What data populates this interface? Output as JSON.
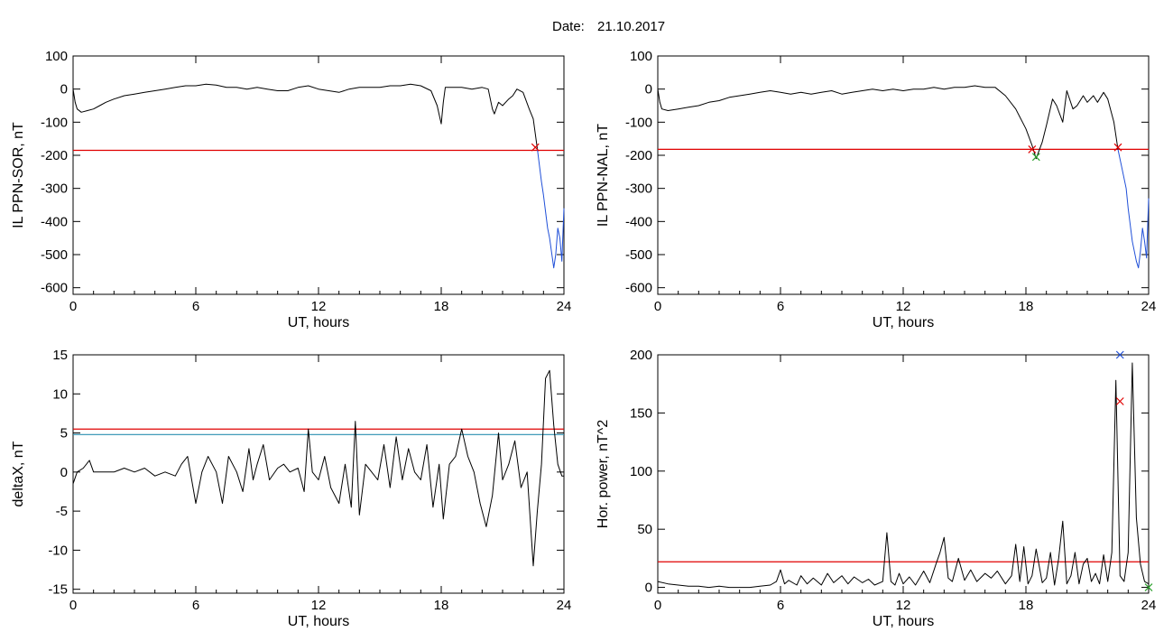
{
  "header": {
    "date_label": "Date:",
    "date_value": "21.10.2017"
  },
  "chart_data": [
    {
      "type": "line",
      "title": "",
      "xlabel": "UT, hours",
      "ylabel": "IL PPN-SOR, nT",
      "xlim": [
        0,
        24
      ],
      "ylim": [
        -620,
        100
      ],
      "x_ticks": [
        0,
        6,
        12,
        18,
        24
      ],
      "y_ticks": [
        100,
        0,
        -100,
        -200,
        -300,
        -400,
        -500,
        -600
      ],
      "threshold": {
        "value": -185,
        "color": "#e00000"
      },
      "series": [
        {
          "color": "#000000",
          "x": [
            0,
            0.1,
            0.2,
            0.4,
            0.7,
            1.0,
            1.3,
            1.6,
            2.0,
            2.5,
            3.0,
            3.5,
            4.0,
            4.5,
            5.0,
            5.5,
            6.0,
            6.5,
            7.0,
            7.5,
            8.0,
            8.5,
            9.0,
            9.5,
            10.0,
            10.5,
            11.0,
            11.5,
            12.0,
            12.5,
            13.0,
            13.5,
            14.0,
            14.5,
            15.0,
            15.5,
            16.0,
            16.5,
            17.0,
            17.5,
            17.8,
            18.0,
            18.1,
            18.2,
            18.4,
            19.0,
            19.5,
            20.0,
            20.3,
            20.5,
            20.6,
            20.8,
            21.0,
            21.3,
            21.5,
            21.7,
            22.0,
            22.3,
            22.5,
            22.7
          ],
          "y": [
            0,
            -40,
            -60,
            -70,
            -65,
            -60,
            -50,
            -40,
            -30,
            -20,
            -15,
            -10,
            -5,
            0,
            5,
            10,
            10,
            15,
            12,
            5,
            5,
            0,
            5,
            0,
            -5,
            -5,
            5,
            10,
            0,
            -5,
            -10,
            0,
            5,
            5,
            5,
            10,
            10,
            15,
            10,
            -5,
            -50,
            -105,
            -40,
            5,
            5,
            5,
            0,
            5,
            0,
            -60,
            -75,
            -40,
            -50,
            -30,
            -20,
            0,
            -10,
            -60,
            -90,
            -180
          ]
        },
        {
          "color": "#1f4fd8",
          "x": [
            22.7,
            22.8,
            22.9,
            23.0,
            23.1,
            23.2,
            23.3,
            23.5,
            23.6,
            23.7,
            23.8,
            23.9,
            24.0
          ],
          "y": [
            -180,
            -230,
            -280,
            -320,
            -370,
            -420,
            -450,
            -540,
            -500,
            -420,
            -450,
            -520,
            -360
          ]
        }
      ],
      "markers": [
        {
          "x": 22.6,
          "y": -176,
          "symbol": "x",
          "color": "#e00000"
        }
      ]
    },
    {
      "type": "line",
      "title": "",
      "xlabel": "UT, hours",
      "ylabel": "IL PPN-NAL, nT",
      "xlim": [
        0,
        24
      ],
      "ylim": [
        -620,
        100
      ],
      "x_ticks": [
        0,
        6,
        12,
        18,
        24
      ],
      "y_ticks": [
        100,
        0,
        -100,
        -200,
        -300,
        -400,
        -500,
        -600
      ],
      "threshold": {
        "value": -182,
        "color": "#e00000"
      },
      "series": [
        {
          "color": "#000000",
          "x": [
            0,
            0.1,
            0.2,
            0.5,
            1.0,
            1.5,
            2.0,
            2.5,
            3.0,
            3.5,
            4.0,
            4.5,
            5.0,
            5.5,
            6.0,
            6.5,
            7.0,
            7.5,
            8.0,
            8.5,
            9.0,
            9.5,
            10.0,
            10.5,
            11.0,
            11.5,
            12.0,
            12.5,
            13.0,
            13.5,
            14.0,
            14.5,
            15.0,
            15.5,
            16.0,
            16.5,
            17.0,
            17.5,
            18.0,
            18.3,
            18.5,
            18.8,
            19.0,
            19.3,
            19.5,
            19.8,
            20.0,
            20.3,
            20.5,
            20.8,
            21.0,
            21.3,
            21.5,
            21.8,
            22.0,
            22.3,
            22.5
          ],
          "y": [
            0,
            -40,
            -60,
            -65,
            -60,
            -55,
            -50,
            -40,
            -35,
            -25,
            -20,
            -15,
            -10,
            -5,
            -10,
            -15,
            -10,
            -15,
            -10,
            -5,
            -15,
            -10,
            -5,
            0,
            -5,
            0,
            -5,
            0,
            0,
            5,
            0,
            5,
            5,
            10,
            5,
            5,
            -20,
            -60,
            -120,
            -170,
            -210,
            -160,
            -110,
            -30,
            -50,
            -100,
            -5,
            -60,
            -50,
            -20,
            -40,
            -20,
            -40,
            -10,
            -30,
            -100,
            -182
          ]
        },
        {
          "color": "#1f4fd8",
          "x": [
            22.5,
            22.7,
            22.9,
            23.0,
            23.1,
            23.2,
            23.4,
            23.5,
            23.6,
            23.7,
            23.8,
            23.9,
            24.0
          ],
          "y": [
            -182,
            -240,
            -300,
            -360,
            -410,
            -460,
            -520,
            -540,
            -490,
            -420,
            -460,
            -510,
            -330
          ]
        }
      ],
      "markers": [
        {
          "x": 18.3,
          "y": -182,
          "symbol": "x",
          "color": "#e00000"
        },
        {
          "x": 18.5,
          "y": -205,
          "symbol": "x",
          "color": "#2ca02c"
        },
        {
          "x": 22.5,
          "y": -176,
          "symbol": "x",
          "color": "#e00000"
        }
      ]
    },
    {
      "type": "line",
      "title": "",
      "xlabel": "UT, hours",
      "ylabel": "deltaX, nT",
      "xlim": [
        0,
        24
      ],
      "ylim": [
        -15.5,
        15
      ],
      "x_ticks": [
        0,
        6,
        12,
        18,
        24
      ],
      "y_ticks": [
        15,
        10,
        5,
        0,
        -5,
        -10,
        -15
      ],
      "threshold": {
        "value": 5.5,
        "color": "#e00000"
      },
      "threshold2": {
        "value": 4.8,
        "color": "#2a8fb0"
      },
      "series": [
        {
          "color": "#000000",
          "x": [
            0,
            0.2,
            0.5,
            0.8,
            1.0,
            1.5,
            2.0,
            2.5,
            3.0,
            3.5,
            4.0,
            4.5,
            5.0,
            5.3,
            5.6,
            6.0,
            6.3,
            6.6,
            7.0,
            7.3,
            7.6,
            8.0,
            8.3,
            8.6,
            8.8,
            9.0,
            9.3,
            9.6,
            10.0,
            10.3,
            10.6,
            11.0,
            11.3,
            11.5,
            11.7,
            12.0,
            12.3,
            12.6,
            13.0,
            13.3,
            13.6,
            13.8,
            14.0,
            14.3,
            14.6,
            14.9,
            15.2,
            15.5,
            15.8,
            16.1,
            16.4,
            16.7,
            17.0,
            17.3,
            17.6,
            17.9,
            18.1,
            18.4,
            18.7,
            19.0,
            19.3,
            19.6,
            19.9,
            20.2,
            20.5,
            20.8,
            21.0,
            21.3,
            21.6,
            21.9,
            22.2,
            22.5,
            22.7,
            22.9,
            23.1,
            23.3,
            23.5,
            23.7,
            23.9,
            24.0
          ],
          "y": [
            -1.5,
            0,
            0.5,
            1.5,
            0,
            0,
            0,
            0.5,
            0,
            0.5,
            -0.5,
            0,
            -0.5,
            1,
            2,
            -4,
            0,
            2,
            0,
            -4,
            2,
            0,
            -2.5,
            3,
            -1,
            1,
            3.5,
            -1,
            0.5,
            1,
            0,
            0.5,
            -2.5,
            5.5,
            0,
            -1,
            2,
            -2,
            -4,
            1,
            -4.5,
            6.5,
            -5.5,
            1,
            0,
            -1,
            3.5,
            -2,
            4.5,
            -1,
            3,
            0,
            -1,
            3.5,
            -4.5,
            1,
            -6,
            1,
            2,
            5.5,
            2,
            0,
            -4,
            -7,
            -3,
            5,
            -1,
            1,
            4,
            -2,
            0,
            -12,
            -5,
            1,
            12,
            13,
            6,
            1,
            -0.5,
            -0.5
          ]
        }
      ],
      "markers": []
    },
    {
      "type": "line",
      "title": "",
      "xlabel": "UT, hours",
      "ylabel": "Hor. power, nT^2",
      "xlim": [
        0,
        24
      ],
      "ylim": [
        -5,
        200
      ],
      "x_ticks": [
        0,
        6,
        12,
        18,
        24
      ],
      "y_ticks": [
        200,
        150,
        100,
        50,
        0
      ],
      "threshold": {
        "value": 22,
        "color": "#e00000"
      },
      "series": [
        {
          "color": "#000000",
          "x": [
            0,
            0.5,
            1.0,
            1.5,
            2.0,
            2.5,
            3.0,
            3.5,
            4.0,
            4.5,
            5.0,
            5.5,
            5.8,
            6.0,
            6.2,
            6.4,
            6.8,
            7.0,
            7.3,
            7.6,
            8.0,
            8.3,
            8.6,
            9.0,
            9.3,
            9.6,
            10.0,
            10.3,
            10.6,
            11.0,
            11.2,
            11.4,
            11.6,
            11.8,
            12.0,
            12.3,
            12.6,
            13.0,
            13.3,
            13.6,
            13.8,
            14.0,
            14.2,
            14.4,
            14.7,
            15.0,
            15.3,
            15.6,
            16.0,
            16.3,
            16.6,
            17.0,
            17.3,
            17.5,
            17.7,
            17.9,
            18.1,
            18.3,
            18.5,
            18.8,
            19.0,
            19.2,
            19.4,
            19.6,
            19.8,
            20.0,
            20.2,
            20.4,
            20.6,
            20.8,
            21.0,
            21.2,
            21.4,
            21.6,
            21.8,
            22.0,
            22.2,
            22.4,
            22.6,
            22.8,
            23.0,
            23.2,
            23.4,
            23.6,
            23.8,
            24.0
          ],
          "y": [
            5,
            3,
            2,
            1,
            1,
            0,
            1,
            0,
            0,
            0,
            1,
            2,
            5,
            15,
            3,
            6,
            2,
            10,
            3,
            8,
            2,
            12,
            4,
            10,
            3,
            9,
            4,
            7,
            2,
            5,
            47,
            5,
            2,
            12,
            3,
            9,
            2,
            14,
            4,
            20,
            30,
            43,
            8,
            5,
            25,
            6,
            15,
            5,
            12,
            8,
            14,
            3,
            10,
            37,
            5,
            35,
            3,
            10,
            33,
            4,
            8,
            30,
            2,
            25,
            57,
            3,
            10,
            30,
            3,
            20,
            25,
            5,
            12,
            3,
            28,
            5,
            30,
            178,
            10,
            5,
            30,
            193,
            60,
            20,
            5,
            3
          ]
        }
      ],
      "markers": [
        {
          "x": 22.6,
          "y": 160,
          "symbol": "x",
          "color": "#e00000"
        },
        {
          "x": 22.6,
          "y": 200,
          "symbol": "x",
          "color": "#1f4fd8"
        },
        {
          "x": 24.0,
          "y": 0,
          "symbol": "x",
          "color": "#2ca02c"
        }
      ]
    }
  ]
}
